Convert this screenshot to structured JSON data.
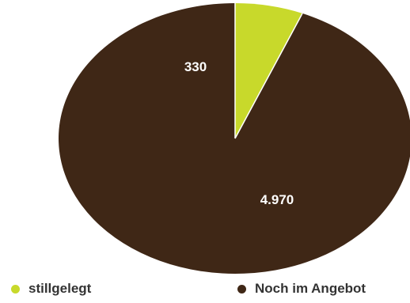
{
  "chart_data": {
    "type": "pie",
    "categories": [
      "stillgelegt",
      "Noch im Angebot"
    ],
    "values": [
      330,
      4970
    ],
    "value_labels": [
      "330",
      "4.970"
    ],
    "colors": [
      "#c8d92b",
      "#3f2716"
    ],
    "start_angle_deg": 0,
    "direction": "clockwise",
    "legend_position": "bottom",
    "title": ""
  },
  "legend": {
    "items": [
      {
        "label": "stillgelegt",
        "color": "#c8d92b"
      },
      {
        "label": "Noch im Angebot",
        "color": "#3f2716"
      }
    ]
  }
}
